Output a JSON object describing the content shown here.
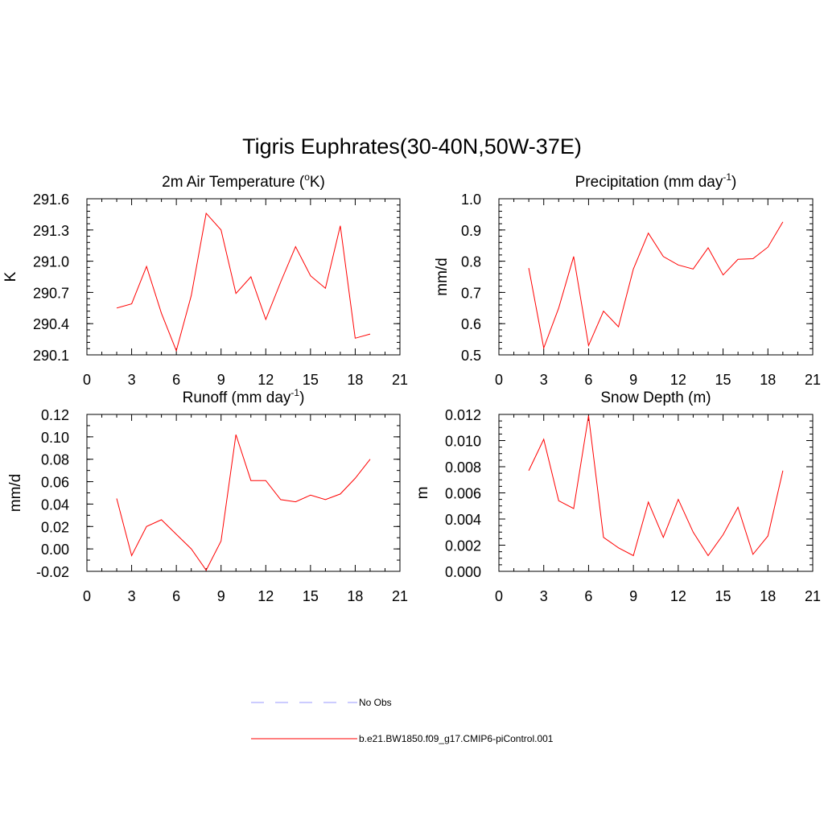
{
  "title": "Tigris Euphrates(30-40N,50W-37E)",
  "chart_data": [
    {
      "type": "line",
      "id": "temp",
      "title": "2m Air Temperature (",
      "title_sup": "o",
      "title_after": "K)",
      "ylabel": "K",
      "xlim": [
        0,
        21
      ],
      "xticks": [
        0,
        3,
        6,
        9,
        12,
        15,
        18,
        21
      ],
      "xtick_labels": [
        "0",
        "3",
        "6",
        "9",
        "12",
        "15",
        "18",
        "21"
      ],
      "ylim": [
        290.1,
        291.6
      ],
      "yticks": [
        290.1,
        290.4,
        290.7,
        291.0,
        291.3,
        291.6
      ],
      "ytick_labels": [
        "290.1",
        "290.4",
        "290.7",
        "291.0",
        "291.3",
        "291.6"
      ],
      "yminor_step": 0.06,
      "x": [
        2,
        3,
        4,
        5,
        6,
        7,
        8,
        9,
        10,
        11,
        12,
        13,
        14,
        15,
        16,
        17,
        18,
        19
      ],
      "values": [
        290.55,
        290.59,
        290.95,
        290.5,
        290.14,
        290.67,
        291.46,
        291.3,
        290.69,
        290.85,
        290.44,
        290.8,
        291.14,
        290.86,
        290.74,
        291.34,
        290.26,
        290.3
      ],
      "color": "#ff0000"
    },
    {
      "type": "line",
      "id": "precip",
      "title": "Precipitation (mm day",
      "title_sup": "-1",
      "title_after": ")",
      "ylabel": "mm/d",
      "xlim": [
        0,
        21
      ],
      "xticks": [
        0,
        3,
        6,
        9,
        12,
        15,
        18,
        21
      ],
      "xtick_labels": [
        "0",
        "3",
        "6",
        "9",
        "12",
        "15",
        "18",
        "21"
      ],
      "ylim": [
        0.5,
        1.0
      ],
      "yticks": [
        0.5,
        0.6,
        0.7,
        0.8,
        0.9,
        1.0
      ],
      "ytick_labels": [
        "0.5",
        "0.6",
        "0.7",
        "0.8",
        "0.9",
        "1.0"
      ],
      "yminor_step": 0.02,
      "x": [
        2,
        3,
        4,
        5,
        6,
        7,
        8,
        9,
        10,
        11,
        12,
        13,
        14,
        15,
        16,
        17,
        18,
        19
      ],
      "values": [
        0.778,
        0.522,
        0.65,
        0.815,
        0.53,
        0.64,
        0.59,
        0.775,
        0.89,
        0.815,
        0.788,
        0.775,
        0.843,
        0.756,
        0.806,
        0.808,
        0.845,
        0.926
      ],
      "color": "#ff0000"
    },
    {
      "type": "line",
      "id": "runoff",
      "title": "Runoff (mm day",
      "title_sup": "-1",
      "title_after": ")",
      "ylabel": "mm/d",
      "xlim": [
        0,
        21
      ],
      "xticks": [
        0,
        3,
        6,
        9,
        12,
        15,
        18,
        21
      ],
      "xtick_labels": [
        "0",
        "3",
        "6",
        "9",
        "12",
        "15",
        "18",
        "21"
      ],
      "ylim": [
        -0.02,
        0.12
      ],
      "yticks": [
        -0.02,
        0.0,
        0.02,
        0.04,
        0.06,
        0.08,
        0.1,
        0.12
      ],
      "ytick_labels": [
        "-0.02",
        "0.00",
        "0.02",
        "0.04",
        "0.06",
        "0.08",
        "0.10",
        "0.12"
      ],
      "yminor_step": 0.01,
      "x": [
        2,
        3,
        4,
        5,
        6,
        7,
        8,
        9,
        10,
        11,
        12,
        13,
        14,
        15,
        16,
        17,
        18,
        19
      ],
      "values": [
        0.045,
        -0.006,
        0.02,
        0.026,
        0.013,
        0.0,
        -0.019,
        0.007,
        0.102,
        0.061,
        0.061,
        0.044,
        0.042,
        0.048,
        0.044,
        0.049,
        0.063,
        0.08
      ],
      "color": "#ff0000"
    },
    {
      "type": "line",
      "id": "snow",
      "title": "Snow Depth (m)",
      "title_sup": "",
      "title_after": "",
      "ylabel": "m",
      "xlim": [
        0,
        21
      ],
      "xticks": [
        0,
        3,
        6,
        9,
        12,
        15,
        18,
        21
      ],
      "xtick_labels": [
        "0",
        "3",
        "6",
        "9",
        "12",
        "15",
        "18",
        "21"
      ],
      "ylim": [
        0.0,
        0.012
      ],
      "yticks": [
        0.0,
        0.002,
        0.004,
        0.006,
        0.008,
        0.01,
        0.012
      ],
      "ytick_labels": [
        "0.000",
        "0.002",
        "0.004",
        "0.006",
        "0.008",
        "0.010",
        "0.012"
      ],
      "yminor_step": 0.0005,
      "x": [
        2,
        3,
        4,
        5,
        6,
        7,
        8,
        9,
        10,
        11,
        12,
        13,
        14,
        15,
        16,
        17,
        18,
        19
      ],
      "values": [
        0.0077,
        0.0101,
        0.0054,
        0.0048,
        0.0119,
        0.0026,
        0.0018,
        0.0012,
        0.0053,
        0.0026,
        0.0055,
        0.003,
        0.0012,
        0.0028,
        0.0049,
        0.0013,
        0.0027,
        0.0077
      ],
      "color": "#ff0000"
    }
  ],
  "legend": [
    {
      "label": "No Obs",
      "color": "#9999ff",
      "dash": true
    },
    {
      "label": "b.e21.BW1850.f09_g17.CMIP6-piControl.001",
      "color": "#ff0000",
      "dash": false
    }
  ]
}
